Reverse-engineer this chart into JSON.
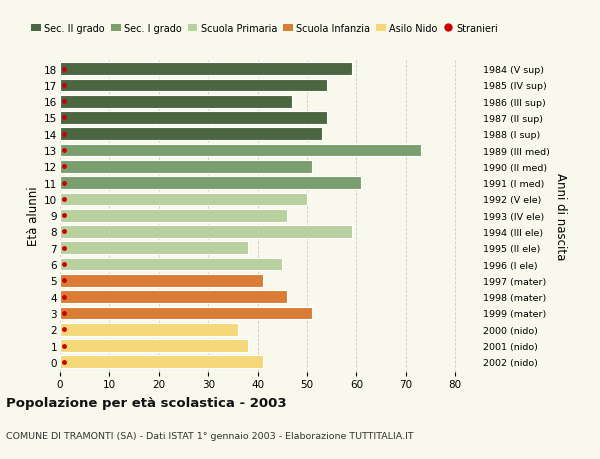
{
  "ages": [
    18,
    17,
    16,
    15,
    14,
    13,
    12,
    11,
    10,
    9,
    8,
    7,
    6,
    5,
    4,
    3,
    2,
    1,
    0
  ],
  "values": [
    59,
    54,
    47,
    54,
    53,
    73,
    51,
    61,
    50,
    46,
    59,
    38,
    45,
    41,
    46,
    51,
    36,
    38,
    41
  ],
  "years": [
    "1984 (V sup)",
    "1985 (IV sup)",
    "1986 (III sup)",
    "1987 (II sup)",
    "1988 (I sup)",
    "1989 (III med)",
    "1990 (II med)",
    "1991 (I med)",
    "1992 (V ele)",
    "1993 (IV ele)",
    "1994 (III ele)",
    "1995 (II ele)",
    "1996 (I ele)",
    "1997 (mater)",
    "1998 (mater)",
    "1999 (mater)",
    "2000 (nido)",
    "2001 (nido)",
    "2002 (nido)"
  ],
  "bar_colors": [
    "#4a6741",
    "#4a6741",
    "#4a6741",
    "#4a6741",
    "#4a6741",
    "#7a9e6e",
    "#7a9e6e",
    "#7a9e6e",
    "#b8cf9e",
    "#b8cf9e",
    "#b8cf9e",
    "#b8cf9e",
    "#b8cf9e",
    "#d97c35",
    "#d97c35",
    "#d97c35",
    "#f5d87a",
    "#f5d87a",
    "#f5d87a"
  ],
  "legend_labels": [
    "Sec. II grado",
    "Sec. I grado",
    "Scuola Primaria",
    "Scuola Infanzia",
    "Asilo Nido",
    "Stranieri"
  ],
  "legend_colors": [
    "#4a6741",
    "#7a9e6e",
    "#b8cf9e",
    "#d97c35",
    "#f5d87a",
    "#cc0000"
  ],
  "title": "Popolazione per età scolastica - 2003",
  "subtitle": "COMUNE DI TRAMONTI (SA) - Dati ISTAT 1° gennaio 2003 - Elaborazione TUTTITALIA.IT",
  "ylabel": "Età alunni",
  "right_ylabel": "Anni di nascita",
  "xlim": [
    0,
    85
  ],
  "xticks": [
    0,
    10,
    20,
    30,
    40,
    50,
    60,
    70,
    80
  ],
  "bg_color": "#f8f8ec",
  "stranieri_color": "#cc0000",
  "bar_height": 0.78
}
